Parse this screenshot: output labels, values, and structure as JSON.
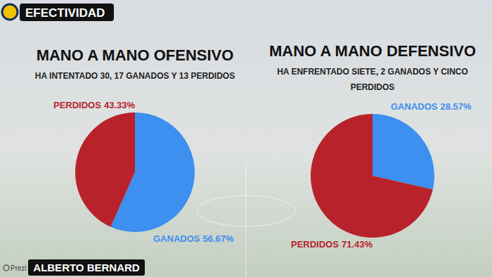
{
  "header": {
    "title": "EFECTIVIDAD"
  },
  "footer": {
    "watermark": "Prezi",
    "name": "ALBERTO BERNARD"
  },
  "chart_data": [
    {
      "type": "pie",
      "title": "MANO A MANO OFENSIVO",
      "subtitle": "HA INTENTADO 30, 17 GANADOS Y 13 PERDIDOS",
      "categories": [
        "GANADOS",
        "PERDIDOS"
      ],
      "values": [
        56.67,
        43.33
      ],
      "value_labels": [
        "56.67%",
        "43.33%"
      ],
      "colors": [
        "#3d8ff0",
        "#b8232b"
      ],
      "data_labels": true
    },
    {
      "type": "pie",
      "title": "MANO A MANO DEFENSIVO",
      "subtitle": "HA ENFRENTADO SIETE, 2 GANADOS Y CINCO PERDIDOS",
      "categories": [
        "GANADOS",
        "PERDIDOS"
      ],
      "values": [
        28.57,
        71.43
      ],
      "value_labels": [
        "28.57%",
        "71.43%"
      ],
      "colors": [
        "#3d8ff0",
        "#b8232b"
      ],
      "data_labels": true
    }
  ]
}
